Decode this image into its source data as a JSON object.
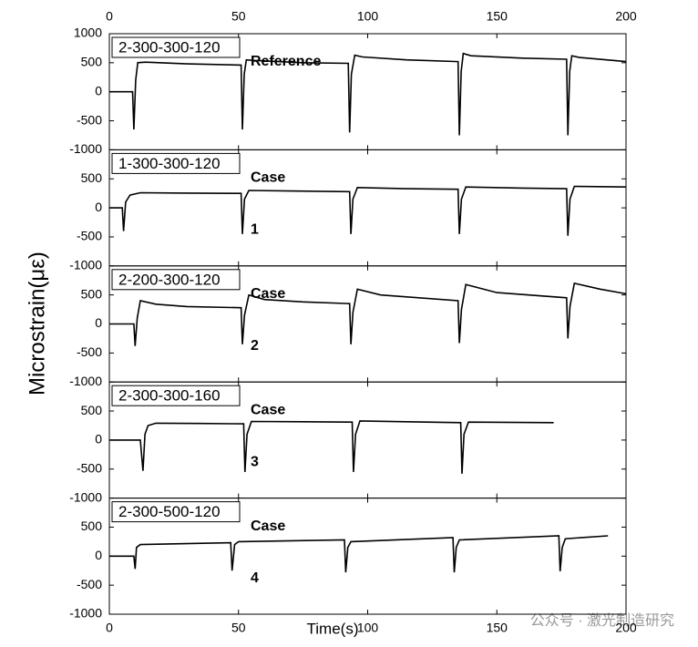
{
  "ylabel": "Microstrain(με)",
  "watermark": "公众号 · 激光制造研究",
  "chart_data": [
    {
      "type": "line",
      "box_label": "2-300-300-120",
      "annotations": [
        "Reference"
      ],
      "color": "#000000",
      "xlim": [
        0,
        200
      ],
      "xticks": [
        0,
        50,
        100,
        150,
        200
      ],
      "ylim": [
        -1000,
        1000
      ],
      "yticks": [
        -1000,
        -500,
        0,
        500,
        1000
      ],
      "x": [
        0,
        9,
        9.5,
        10.2,
        11,
        14,
        30,
        51,
        51.5,
        52.2,
        53,
        56,
        75,
        92.5,
        93,
        93.7,
        95,
        98,
        115,
        135,
        135.5,
        136.2,
        137,
        140,
        160,
        177,
        177.5,
        178.2,
        179,
        182,
        200
      ],
      "values": [
        0,
        0,
        -650,
        200,
        500,
        510,
        480,
        460,
        -650,
        300,
        550,
        540,
        500,
        490,
        -700,
        300,
        630,
        600,
        550,
        520,
        -750,
        350,
        660,
        620,
        580,
        560,
        -750,
        350,
        620,
        590,
        520
      ]
    },
    {
      "type": "line",
      "box_label": "1-300-300-120",
      "annotations": [
        "Case",
        "1"
      ],
      "color": "#000000",
      "xlim": [
        0,
        200
      ],
      "xticks": [
        0,
        50,
        100,
        150,
        200
      ],
      "ylim": [
        -1000,
        1000
      ],
      "yticks": [
        -1000,
        -500,
        0,
        500
      ],
      "x": [
        0,
        5,
        5.5,
        6.3,
        8,
        12,
        30,
        51,
        51.5,
        52.3,
        54,
        70,
        93,
        93.5,
        94.3,
        96,
        115,
        135,
        135.5,
        136.3,
        138,
        160,
        177,
        177.5,
        178.3,
        180,
        200
      ],
      "values": [
        0,
        0,
        -400,
        100,
        220,
        260,
        255,
        250,
        -450,
        150,
        300,
        290,
        280,
        -450,
        150,
        350,
        330,
        320,
        -450,
        150,
        360,
        340,
        330,
        -480,
        150,
        370,
        360
      ]
    },
    {
      "type": "line",
      "box_label": "2-200-300-120",
      "annotations": [
        "Case",
        "2"
      ],
      "color": "#000000",
      "xlim": [
        0,
        200
      ],
      "xticks": [
        0,
        50,
        100,
        150,
        200
      ],
      "ylim": [
        -1000,
        1000
      ],
      "yticks": [
        -1000,
        -500,
        0,
        500
      ],
      "x": [
        0,
        9.5,
        10,
        10.8,
        12,
        18,
        30,
        51,
        51.5,
        52.3,
        54,
        60,
        75,
        93,
        93.5,
        94.3,
        96,
        105,
        135,
        135.5,
        136.3,
        138,
        150,
        177,
        177.5,
        178.3,
        180,
        190,
        200
      ],
      "values": [
        0,
        0,
        -380,
        100,
        400,
        340,
        300,
        280,
        -350,
        150,
        500,
        420,
        380,
        350,
        -350,
        200,
        600,
        500,
        400,
        -330,
        250,
        680,
        540,
        450,
        -250,
        300,
        700,
        600,
        520
      ]
    },
    {
      "type": "line",
      "box_label": "2-300-300-160",
      "annotations": [
        "Case",
        "3"
      ],
      "color": "#000000",
      "xlim": [
        0,
        200
      ],
      "xticks": [
        0,
        50,
        100,
        150,
        200
      ],
      "ylim": [
        -1000,
        1000
      ],
      "yticks": [
        -1000,
        -500,
        0,
        500
      ],
      "x": [
        0,
        12,
        13,
        13.8,
        15,
        18,
        35,
        52,
        52.5,
        53.3,
        55,
        75,
        94,
        94.5,
        95.3,
        97,
        115,
        136,
        136.5,
        137.3,
        139,
        172
      ],
      "values": [
        0,
        0,
        -530,
        100,
        250,
        290,
        285,
        280,
        -550,
        100,
        320,
        315,
        310,
        -550,
        100,
        330,
        315,
        300,
        -580,
        100,
        310,
        300
      ]
    },
    {
      "type": "line",
      "box_label": "2-300-500-120",
      "annotations": [
        "Case",
        "4"
      ],
      "color": "#000000",
      "xlim": [
        0,
        200
      ],
      "xticks": [
        0,
        50,
        100,
        150,
        200
      ],
      "ylim": [
        -1000,
        1000
      ],
      "yticks": [
        -1000,
        -500,
        0,
        500
      ],
      "xlabel": "Time(s)",
      "x": [
        0,
        9.5,
        10,
        10.5,
        12,
        47,
        47.5,
        48.5,
        50,
        91,
        91.5,
        92.3,
        93.5,
        133,
        133.5,
        134.3,
        135.5,
        174,
        174.5,
        175.3,
        176.5,
        193
      ],
      "values": [
        0,
        0,
        -220,
        150,
        200,
        230,
        -250,
        200,
        250,
        280,
        -280,
        150,
        250,
        320,
        -280,
        150,
        280,
        350,
        -260,
        150,
        300,
        350
      ]
    }
  ]
}
